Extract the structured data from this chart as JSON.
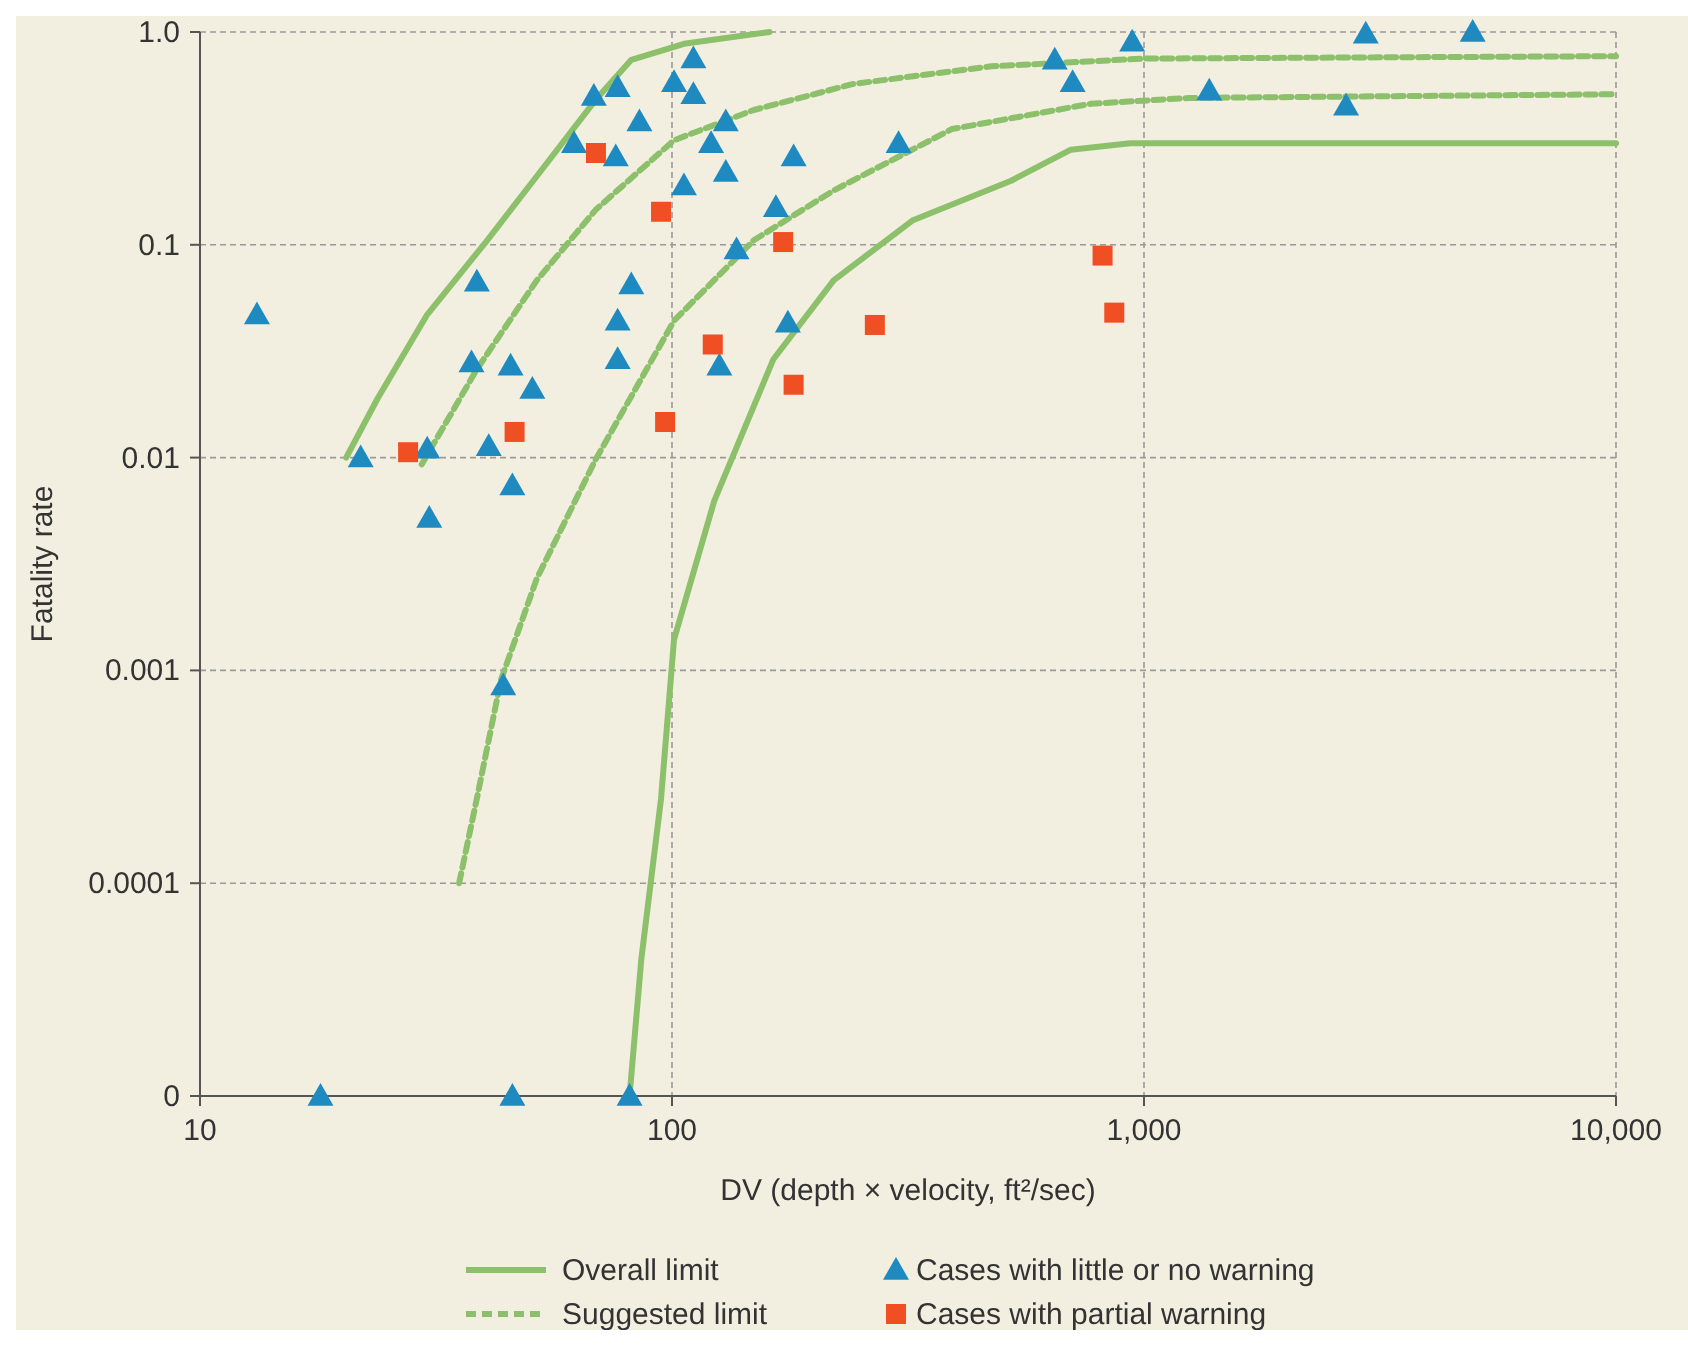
{
  "chart_data": {
    "type": "scatter",
    "xlabel": "DV (depth × velocity, ft²/sec)",
    "ylabel": "Fatality rate",
    "log": "xy",
    "grid": true,
    "legend": "bottom",
    "xlim": [
      10,
      10000
    ],
    "xticks": [
      10,
      100,
      {
        "value": 1000,
        "label": "1,000"
      },
      {
        "value": 10000,
        "label": "10,000"
      }
    ],
    "ylim": [
      1e-05,
      1
    ],
    "yticks": [
      {
        "value": 1e-05,
        "label": "0"
      },
      0.0001,
      0.001,
      0.01,
      0.1,
      {
        "value": 1,
        "label": "1.0"
      }
    ],
    "series": [
      {
        "name": "Overall limit",
        "type": "line",
        "line_style": "solid",
        "marker": "none",
        "color": "#8cc06a",
        "x": [
          20.4,
          23.8,
          30.3,
          40.6,
          51.7,
          68.9,
          82,
          106,
          161
        ],
        "values": [
          0.01,
          0.019,
          0.047,
          0.105,
          0.21,
          0.48,
          0.74,
          0.88,
          1.0
        ]
      },
      {
        "type": "line",
        "line_style": "solid",
        "marker": "none",
        "color": "#8cc06a",
        "x": [
          81.3,
          86.1,
          94.8,
          101,
          123,
          164,
          220,
          323,
          523,
          700,
          935,
          10000
        ],
        "values": [
          1e-05,
          4.4e-05,
          0.00025,
          0.0014,
          0.0063,
          0.029,
          0.068,
          0.13,
          0.2,
          0.28,
          0.3,
          0.3
        ]
      },
      {
        "name": "Suggested limit",
        "type": "line",
        "line_style": "dashed",
        "marker": "none",
        "color": "#8cc06a",
        "x": [
          29.5,
          38.6,
          51.7,
          68.9,
          101,
          149,
          242,
          475,
          1000,
          10000
        ],
        "values": [
          0.0093,
          0.026,
          0.068,
          0.146,
          0.31,
          0.43,
          0.57,
          0.69,
          0.75,
          0.77
        ]
      },
      {
        "type": "line",
        "line_style": "dashed",
        "marker": "none",
        "color": "#8cc06a",
        "x": [
          35.4,
          38.6,
          43.4,
          51.7,
          68.9,
          101,
          149,
          220,
          392,
          771,
          1250,
          10000
        ],
        "values": [
          0.0001,
          0.00025,
          0.0009,
          0.0027,
          0.0098,
          0.044,
          0.105,
          0.18,
          0.35,
          0.46,
          0.49,
          0.51
        ]
      },
      {
        "name": "Cases with little or no warning",
        "marker": "triangle",
        "color": "#1f8ac0",
        "x": [
          13.2,
          21.9,
          30.3,
          30.6,
          18,
          45.9,
          81.3,
          43.9,
          38.6,
          37.6,
          40.9,
          45.5,
          50.6,
          45.9,
          62,
          68.3,
          76.7,
          76,
          85.3,
          82,
          76.7,
          76.7,
          101,
          111,
          111,
          106,
          121,
          130,
          130,
          137,
          126,
          166,
          181,
          176,
          302,
          647,
          706,
          944,
          1375,
          2680,
          2950,
          4970
        ],
        "values": [
          0.047,
          0.01,
          0.011,
          0.0052,
          1e-05,
          1e-05,
          1e-05,
          0.00085,
          0.067,
          0.028,
          0.0113,
          0.027,
          0.021,
          0.0074,
          0.3,
          0.5,
          0.55,
          0.26,
          0.38,
          0.065,
          0.044,
          0.029,
          0.58,
          0.75,
          0.51,
          0.19,
          0.3,
          0.38,
          0.22,
          0.095,
          0.027,
          0.15,
          0.26,
          0.043,
          0.3,
          0.74,
          0.58,
          0.9,
          0.53,
          0.45,
          0.98,
          1.0
        ]
      },
      {
        "name": "Cases with partial warning",
        "marker": "square",
        "color": "#f04e23",
        "x": [
          27.6,
          46.4,
          69,
          94.8,
          96.7,
          122,
          172,
          181,
          269,
          817,
          865
        ],
        "values": [
          0.0106,
          0.0132,
          0.27,
          0.143,
          0.0147,
          0.034,
          0.103,
          0.022,
          0.042,
          0.089,
          0.048
        ]
      }
    ]
  }
}
